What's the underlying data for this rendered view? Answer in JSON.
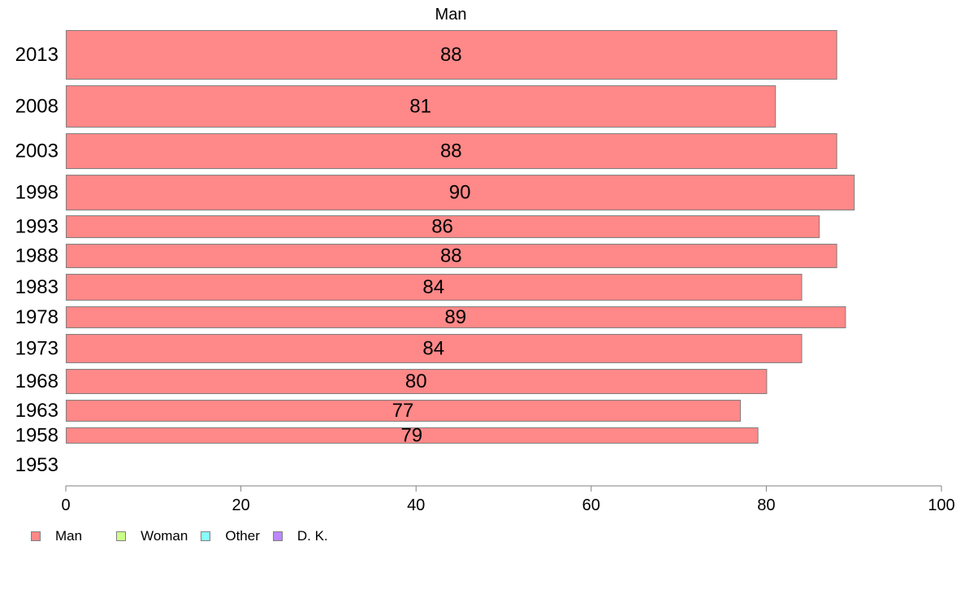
{
  "chart_data": {
    "type": "bar",
    "orientation": "horizontal",
    "title": "Man",
    "categories": [
      "2013",
      "2008",
      "2003",
      "1998",
      "1993",
      "1988",
      "1983",
      "1978",
      "1973",
      "1968",
      "1963",
      "1958",
      "1953"
    ],
    "series": [
      {
        "name": "Man",
        "color": "#ff8888",
        "values": [
          88,
          81,
          88,
          90,
          86,
          88,
          84,
          89,
          84,
          80,
          77,
          79,
          null
        ]
      }
    ],
    "data_labels": [
      "88",
      "81",
      "88",
      "90",
      "86",
      "88",
      "84",
      "89",
      "84",
      "80",
      "77",
      "79",
      ""
    ],
    "xlim": [
      0,
      100
    ],
    "xticks": [
      "0",
      "20",
      "40",
      "60",
      "80",
      "100"
    ],
    "grid": false,
    "legend": {
      "position": "bottom-left",
      "items": [
        {
          "label": "Man",
          "color": "#ff8888"
        },
        {
          "label": "Woman",
          "color": "#ccff88"
        },
        {
          "label": "Other",
          "color": "#88ffff"
        },
        {
          "label": "D. K.",
          "color": "#bb88ff"
        }
      ]
    }
  }
}
